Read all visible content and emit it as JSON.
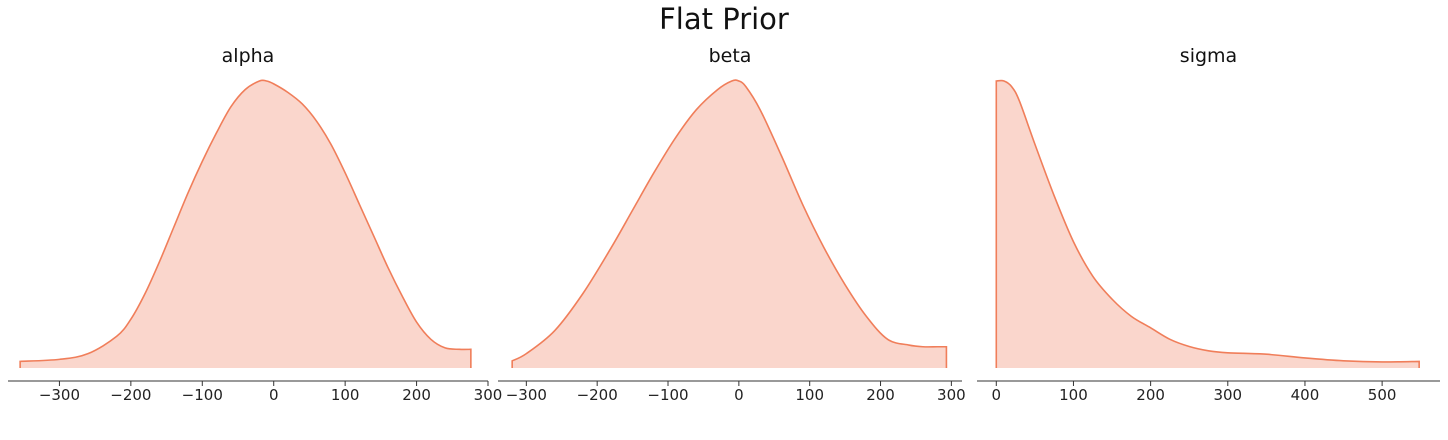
{
  "suptitle": "Flat Prior",
  "colors": {
    "kde": "#f07e5a",
    "fill": "#fad6cc"
  },
  "chart_data": [
    {
      "type": "area",
      "title": "alpha",
      "xlabel": "",
      "ylabel": "",
      "xlim": [
        -372,
        300
      ],
      "xticks": [
        -300,
        -200,
        -100,
        0,
        100,
        200,
        300
      ],
      "xtick_labels": [
        "−300",
        "−200",
        "−100",
        "0",
        "100",
        "200",
        "300"
      ],
      "x": [
        -355,
        -300,
        -260,
        -220,
        -200,
        -180,
        -160,
        -140,
        -120,
        -100,
        -80,
        -60,
        -40,
        -20,
        -10,
        0,
        20,
        40,
        60,
        80,
        100,
        120,
        140,
        160,
        180,
        200,
        220,
        240,
        260,
        276
      ],
      "density": [
        0.023,
        0.03,
        0.05,
        0.11,
        0.17,
        0.26,
        0.37,
        0.49,
        0.61,
        0.72,
        0.82,
        0.91,
        0.97,
        1.0,
        1.0,
        0.99,
        0.96,
        0.92,
        0.86,
        0.78,
        0.68,
        0.57,
        0.46,
        0.35,
        0.25,
        0.16,
        0.1,
        0.07,
        0.065,
        0.065
      ]
    },
    {
      "type": "area",
      "title": "beta",
      "xlabel": "",
      "ylabel": "",
      "xlim": [
        -340,
        315
      ],
      "xticks": [
        -300,
        -200,
        -100,
        0,
        100,
        200,
        300
      ],
      "xtick_labels": [
        "−300",
        "−200",
        "−100",
        "0",
        "100",
        "200",
        "300"
      ],
      "x": [
        -320,
        -300,
        -260,
        -220,
        -180,
        -150,
        -120,
        -90,
        -60,
        -30,
        -10,
        0,
        10,
        30,
        60,
        90,
        120,
        150,
        180,
        210,
        240,
        260,
        280,
        293
      ],
      "density": [
        0.025,
        0.05,
        0.13,
        0.26,
        0.42,
        0.55,
        0.68,
        0.8,
        0.9,
        0.97,
        1.0,
        1.0,
        0.98,
        0.9,
        0.74,
        0.57,
        0.42,
        0.29,
        0.18,
        0.1,
        0.08,
        0.074,
        0.074,
        0.074
      ]
    },
    {
      "type": "area",
      "title": "sigma",
      "xlabel": "",
      "ylabel": "",
      "xlim": [
        -25,
        575
      ],
      "xticks": [
        0,
        100,
        200,
        300,
        400,
        500
      ],
      "xtick_labels": [
        "0",
        "100",
        "200",
        "300",
        "400",
        "500"
      ],
      "x": [
        0,
        10,
        20,
        30,
        50,
        75,
        100,
        125,
        150,
        175,
        200,
        225,
        250,
        275,
        300,
        350,
        400,
        450,
        500,
        548
      ],
      "density": [
        1.0,
        1.0,
        0.98,
        0.93,
        0.78,
        0.6,
        0.44,
        0.32,
        0.24,
        0.18,
        0.14,
        0.1,
        0.075,
        0.06,
        0.053,
        0.048,
        0.035,
        0.025,
        0.021,
        0.023
      ]
    }
  ]
}
